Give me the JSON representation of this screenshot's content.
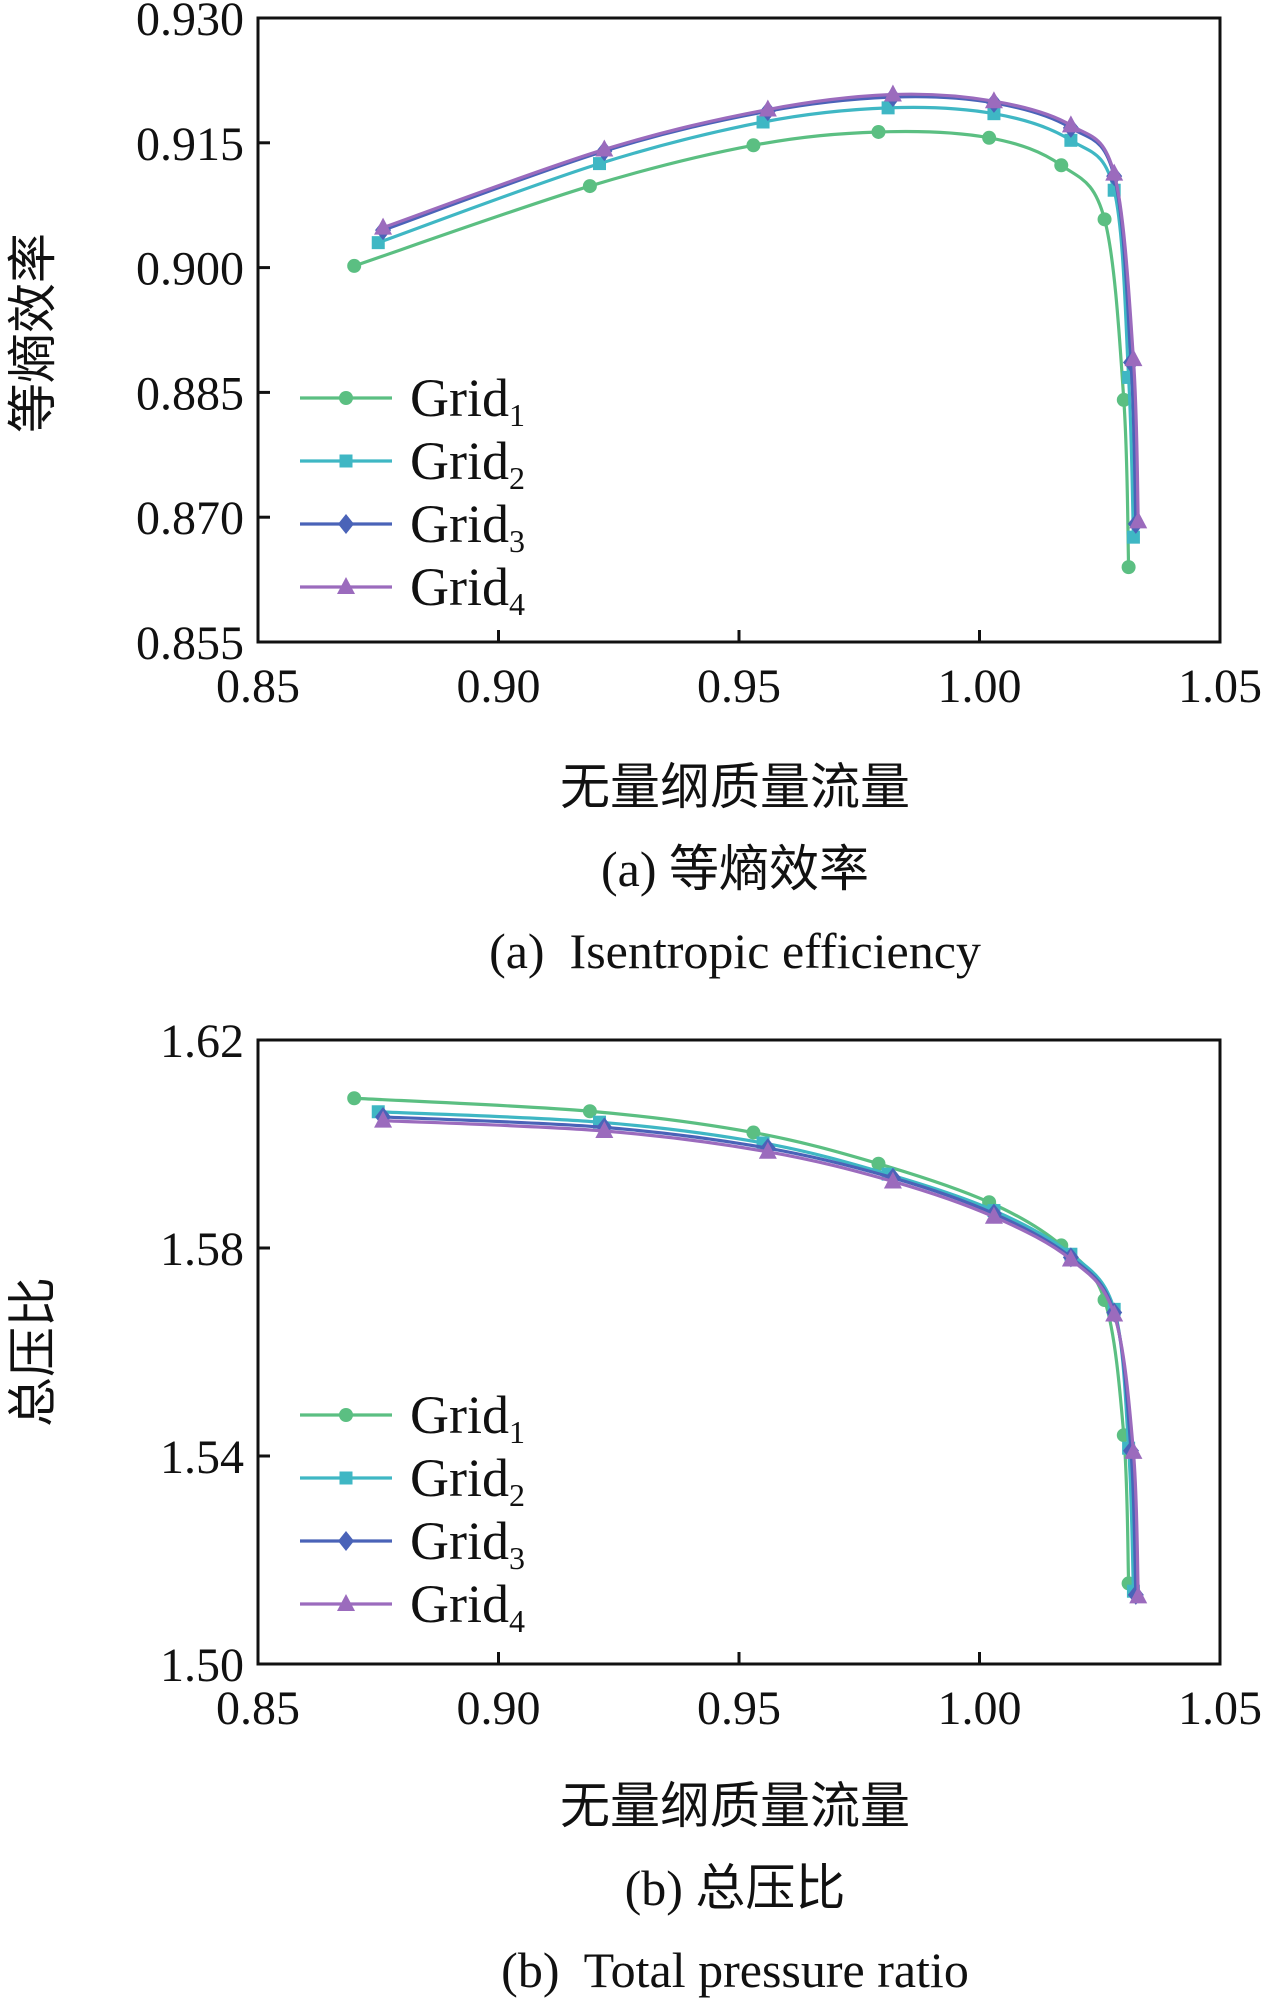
{
  "chart_data": [
    {
      "type": "line",
      "xlabel": "无量纲质量流量",
      "ylabel": "等熵效率",
      "caption_cn": "(a) 等熵效率",
      "caption_en": "(a)  Isentropic efficiency",
      "xlim": [
        0.85,
        1.05
      ],
      "ylim": [
        0.855,
        0.93
      ],
      "x_ticks": [
        "0.85",
        "0.90",
        "0.95",
        "1.00",
        "1.05"
      ],
      "y_ticks": [
        "0.855",
        "0.870",
        "0.885",
        "0.900",
        "0.915",
        "0.930"
      ],
      "legend_position": "lower-left",
      "grid": false,
      "series": [
        {
          "name": "Grid",
          "sub": "1",
          "color": "#5bbf82",
          "marker": "circle",
          "x": [
            0.87,
            0.919,
            0.953,
            0.979,
            1.002,
            1.017,
            1.026,
            1.03,
            1.031
          ],
          "y": [
            0.9002,
            0.9098,
            0.9147,
            0.9163,
            0.9156,
            0.9123,
            0.9058,
            0.8841,
            0.864
          ]
        },
        {
          "name": "Grid",
          "sub": "2",
          "color": "#3fb7c4",
          "marker": "square",
          "x": [
            0.875,
            0.921,
            0.955,
            0.981,
            1.003,
            1.019,
            1.028,
            1.031,
            1.032
          ],
          "y": [
            0.903,
            0.9125,
            0.9175,
            0.9192,
            0.9185,
            0.9153,
            0.9093,
            0.8868,
            0.8676
          ]
        },
        {
          "name": "Grid",
          "sub": "3",
          "color": "#4a63b8",
          "marker": "diamond",
          "x": [
            0.876,
            0.922,
            0.956,
            0.982,
            1.003,
            1.019,
            1.028,
            1.0315,
            1.0325
          ],
          "y": [
            0.9045,
            0.914,
            0.9188,
            0.9205,
            0.9198,
            0.9168,
            0.911,
            0.8886,
            0.8692
          ]
        },
        {
          "name": "Grid",
          "sub": "4",
          "color": "#9b6bbd",
          "marker": "triangle",
          "x": [
            0.876,
            0.922,
            0.956,
            0.982,
            1.003,
            1.019,
            1.028,
            1.032,
            1.033
          ],
          "y": [
            0.9048,
            0.9142,
            0.919,
            0.9208,
            0.92,
            0.9171,
            0.9113,
            0.889,
            0.8695
          ]
        }
      ]
    },
    {
      "type": "line",
      "xlabel": "无量纲质量流量",
      "ylabel": "总压比",
      "caption_cn": "(b) 总压比",
      "caption_en": "(b)  Total pressure ratio",
      "xlim": [
        0.85,
        1.05
      ],
      "ylim": [
        1.5,
        1.62
      ],
      "x_ticks": [
        "0.85",
        "0.90",
        "0.95",
        "1.00",
        "1.05"
      ],
      "y_ticks": [
        "1.50",
        "1.54",
        "1.58",
        "1.62"
      ],
      "legend_position": "lower-left",
      "grid": false,
      "series": [
        {
          "name": "Grid",
          "sub": "1",
          "color": "#5bbf82",
          "marker": "circle",
          "x": [
            0.87,
            0.919,
            0.953,
            0.979,
            1.002,
            1.017,
            1.026,
            1.03,
            1.031
          ],
          "y": [
            1.6088,
            1.6063,
            1.6022,
            1.5962,
            1.5888,
            1.5805,
            1.57,
            1.544,
            1.5155
          ]
        },
        {
          "name": "Grid",
          "sub": "2",
          "color": "#3fb7c4",
          "marker": "square",
          "x": [
            0.875,
            0.921,
            0.955,
            0.981,
            1.003,
            1.019,
            1.028,
            1.031,
            1.032
          ],
          "y": [
            1.6062,
            1.6042,
            1.6002,
            1.5942,
            1.5872,
            1.5788,
            1.5682,
            1.5415,
            1.514
          ]
        },
        {
          "name": "Grid",
          "sub": "3",
          "color": "#4a63b8",
          "marker": "diamond",
          "x": [
            0.876,
            0.922,
            0.956,
            0.982,
            1.003,
            1.019,
            1.028,
            1.0315,
            1.0325
          ],
          "y": [
            1.6052,
            1.6032,
            1.5992,
            1.5935,
            1.5866,
            1.5782,
            1.5676,
            1.541,
            1.5133
          ]
        },
        {
          "name": "Grid",
          "sub": "4",
          "color": "#9b6bbd",
          "marker": "triangle",
          "x": [
            0.876,
            0.922,
            0.956,
            0.982,
            1.003,
            1.019,
            1.028,
            1.032,
            1.033
          ],
          "y": [
            1.6045,
            1.6025,
            1.5985,
            1.5928,
            1.586,
            1.5778,
            1.5672,
            1.5408,
            1.513
          ]
        }
      ]
    }
  ]
}
